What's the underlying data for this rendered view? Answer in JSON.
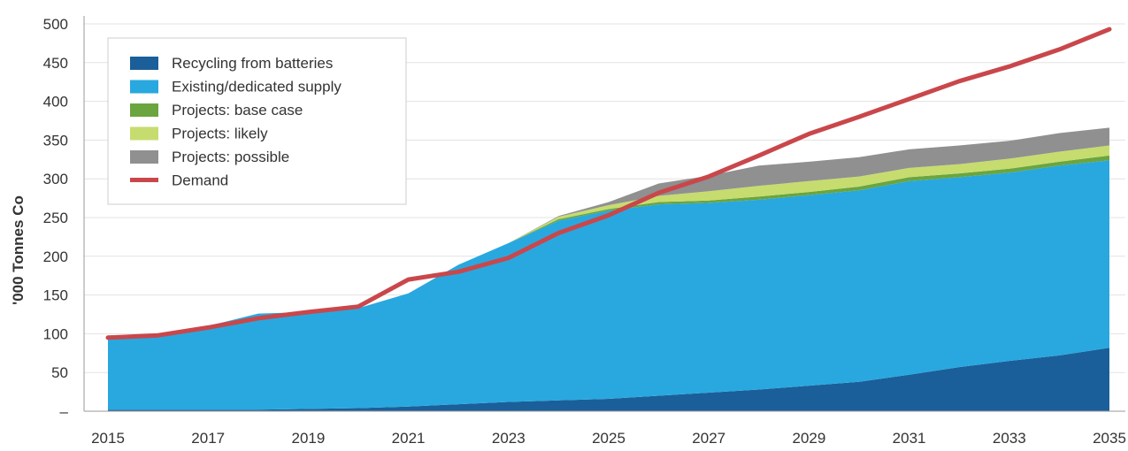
{
  "chart_data": {
    "type": "area",
    "title": "",
    "xlabel": "",
    "ylabel": "'000 Tonnes Co",
    "x": [
      2015,
      2016,
      2017,
      2018,
      2019,
      2020,
      2021,
      2022,
      2023,
      2024,
      2025,
      2026,
      2027,
      2028,
      2029,
      2030,
      2031,
      2032,
      2033,
      2034,
      2035
    ],
    "x_tick_labels": [
      "2015",
      "2017",
      "2019",
      "2021",
      "2023",
      "2025",
      "2027",
      "2029",
      "2031",
      "2033",
      "2035"
    ],
    "y_tick_labels": [
      "–",
      "50",
      "100",
      "150",
      "200",
      "250",
      "300",
      "350",
      "400",
      "450",
      "500"
    ],
    "ylim": [
      0,
      500
    ],
    "grid": true,
    "legend_position": "top-left",
    "stacked_series": [
      {
        "name": "Recycling from batteries",
        "color": "#1a5f9a",
        "values": [
          2,
          2,
          2,
          2,
          3,
          4,
          6,
          9,
          12,
          14,
          16,
          20,
          24,
          28,
          33,
          38,
          47,
          57,
          65,
          72,
          82
        ]
      },
      {
        "name": "Existing/dedicated supply",
        "color": "#29a8df",
        "values": [
          95,
          94,
          108,
          124,
          125,
          129,
          146,
          180,
          205,
          232,
          243,
          247,
          245,
          245,
          246,
          247,
          250,
          245,
          243,
          245,
          242
        ]
      },
      {
        "name": "Projects: base case",
        "color": "#6aa53f",
        "values": [
          0,
          0,
          0,
          0,
          0,
          0,
          0,
          0,
          0,
          2,
          2,
          3,
          3,
          4,
          4,
          5,
          5,
          5,
          5,
          5,
          6
        ]
      },
      {
        "name": "Projects: likely",
        "color": "#c6dc6f",
        "values": [
          0,
          0,
          0,
          0,
          0,
          0,
          0,
          0,
          0,
          3,
          5,
          8,
          12,
          14,
          14,
          13,
          12,
          12,
          13,
          13,
          13
        ]
      },
      {
        "name": "Projects: possible",
        "color": "#909090",
        "values": [
          0,
          0,
          0,
          0,
          0,
          0,
          0,
          0,
          0,
          1,
          4,
          16,
          20,
          26,
          25,
          25,
          24,
          24,
          23,
          24,
          23
        ]
      }
    ],
    "line_series": [
      {
        "name": "Demand",
        "color": "#c9474b",
        "values": [
          95,
          98,
          108,
          120,
          128,
          135,
          170,
          180,
          198,
          230,
          253,
          282,
          303,
          330,
          358,
          380,
          403,
          426,
          445,
          467,
          493
        ]
      }
    ]
  }
}
